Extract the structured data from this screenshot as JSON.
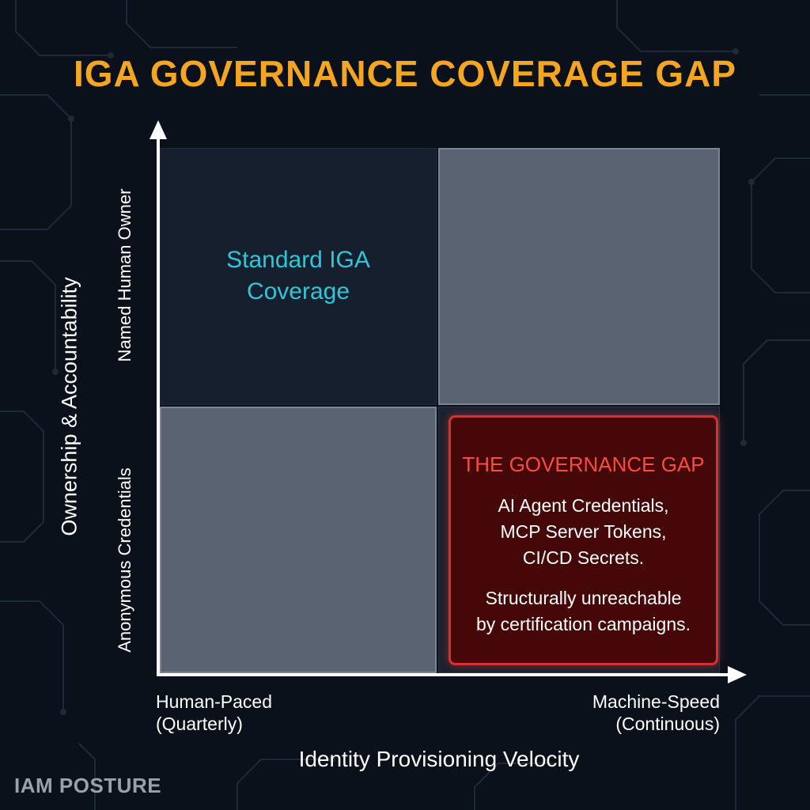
{
  "title": "IGA GOVERNANCE COVERAGE GAP",
  "y_axis": {
    "label": "Ownership & Accountability",
    "high_label": "Named Human Owner",
    "low_label": "Anonymous Credentials"
  },
  "x_axis": {
    "label": "Identity Provisioning Velocity",
    "low_label_line1": "Human-Paced",
    "low_label_line2": "(Quarterly)",
    "high_label_line1": "Machine-Speed",
    "high_label_line2": "(Continuous)"
  },
  "quadrants": {
    "top_left": {
      "line1": "Standard IGA",
      "line2": "Coverage"
    },
    "bottom_right": {
      "heading": "THE GOVERNANCE GAP",
      "line1": "AI Agent Credentials,",
      "line2": "MCP Server Tokens,",
      "line3": "CI/CD Secrets.",
      "line4": "Structurally unreachable",
      "line5": "by certification campaigns."
    }
  },
  "brand": "IAM POSTURE",
  "colors": {
    "title": "#f4a623",
    "coverage_text": "#2fc6d8",
    "gap_border": "#d9302c",
    "gap_fill": "#450707",
    "gap_heading": "#ff4a40",
    "background": "#0b111a"
  }
}
